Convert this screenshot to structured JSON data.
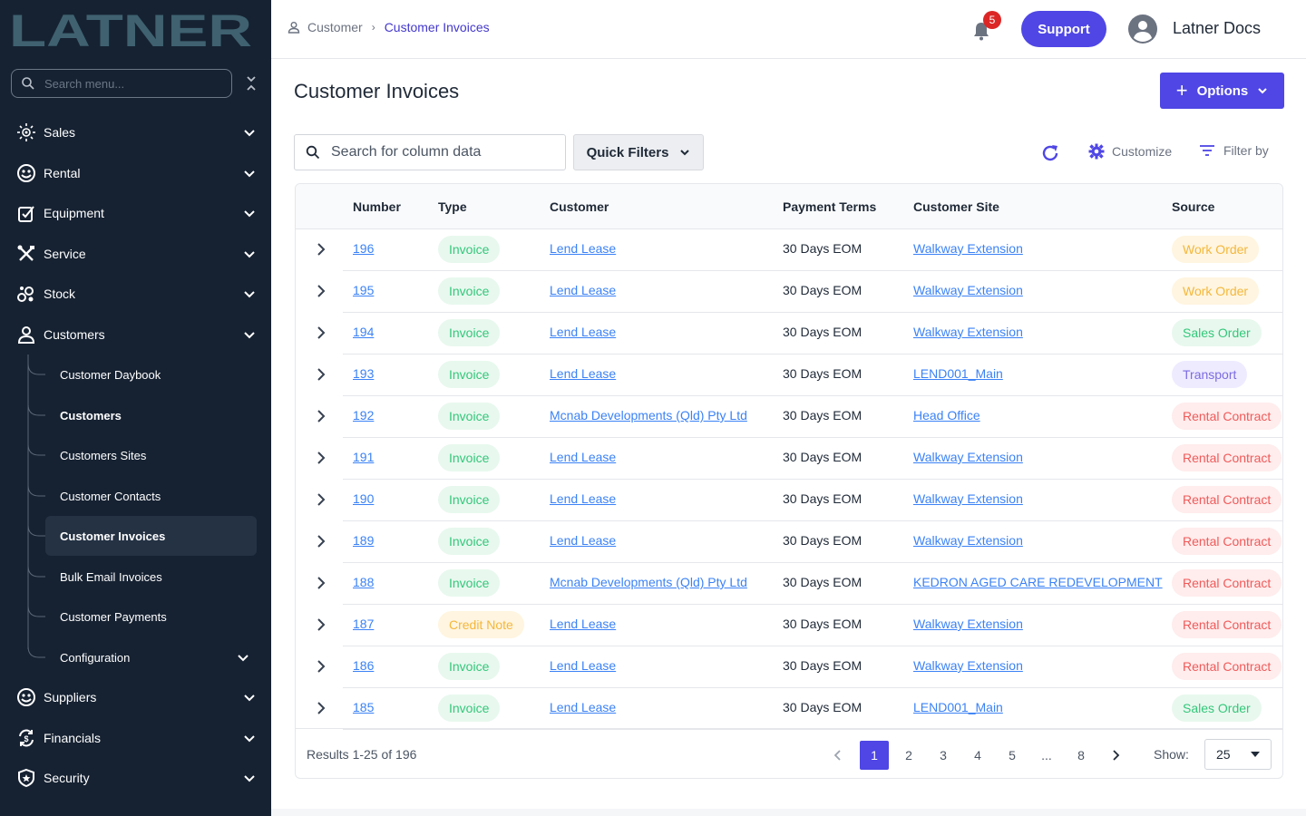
{
  "brand": {
    "logo_text": "LATNER"
  },
  "sidebar": {
    "search_placeholder": "Search menu...",
    "items": [
      {
        "label": "Sales",
        "icon": "sales-icon"
      },
      {
        "label": "Rental",
        "icon": "rental-icon"
      },
      {
        "label": "Equipment",
        "icon": "equipment-icon"
      },
      {
        "label": "Service",
        "icon": "service-icon"
      },
      {
        "label": "Stock",
        "icon": "stock-icon"
      },
      {
        "label": "Customers",
        "icon": "user-icon"
      },
      {
        "label": "Suppliers",
        "icon": "suppliers-icon"
      },
      {
        "label": "Financials",
        "icon": "financials-icon"
      },
      {
        "label": "Security",
        "icon": "shield-icon"
      }
    ],
    "customers_sub": [
      "Customer Daybook",
      "Customers",
      "Customers Sites",
      "Customer Contacts",
      "Customer Invoices",
      "Bulk Email Invoices",
      "Customer Payments",
      "Configuration"
    ]
  },
  "header": {
    "breadcrumb": [
      "Customer",
      "Customer Invoices"
    ],
    "notification_count": "5",
    "support_label": "Support",
    "user_name": "Latner Docs"
  },
  "page": {
    "title": "Customer Invoices",
    "options_label": "Options",
    "search_placeholder": "Search for column data",
    "quick_filters_label": "Quick Filters",
    "customize_label": "Customize",
    "filter_by_label": "Filter by"
  },
  "table": {
    "columns": [
      "Number",
      "Type",
      "Customer",
      "Payment Terms",
      "Customer Site",
      "Source"
    ],
    "rows": [
      {
        "number": "196",
        "type": "Invoice",
        "customer": "Lend Lease",
        "terms": "30 Days EOM",
        "site": "Walkway Extension",
        "source": "Work Order"
      },
      {
        "number": "195",
        "type": "Invoice",
        "customer": "Lend Lease",
        "terms": "30 Days EOM",
        "site": "Walkway Extension",
        "source": "Work Order"
      },
      {
        "number": "194",
        "type": "Invoice",
        "customer": "Lend Lease",
        "terms": "30 Days EOM",
        "site": "Walkway Extension",
        "source": "Sales Order"
      },
      {
        "number": "193",
        "type": "Invoice",
        "customer": "Lend Lease",
        "terms": "30 Days EOM",
        "site": "LEND001_Main",
        "source": "Transport"
      },
      {
        "number": "192",
        "type": "Invoice",
        "customer": "Mcnab Developments (Qld) Pty Ltd",
        "terms": "30 Days EOM",
        "site": "Head Office",
        "source": "Rental Contract"
      },
      {
        "number": "191",
        "type": "Invoice",
        "customer": "Lend Lease",
        "terms": "30 Days EOM",
        "site": "Walkway Extension",
        "source": "Rental Contract"
      },
      {
        "number": "190",
        "type": "Invoice",
        "customer": "Lend Lease",
        "terms": "30 Days EOM",
        "site": "Walkway Extension",
        "source": "Rental Contract"
      },
      {
        "number": "189",
        "type": "Invoice",
        "customer": "Lend Lease",
        "terms": "30 Days EOM",
        "site": "Walkway Extension",
        "source": "Rental Contract"
      },
      {
        "number": "188",
        "type": "Invoice",
        "customer": "Mcnab Developments (Qld) Pty Ltd",
        "terms": "30 Days EOM",
        "site": "KEDRON AGED CARE REDEVELOPMENT",
        "source": "Rental Contract"
      },
      {
        "number": "187",
        "type": "Credit Note",
        "customer": "Lend Lease",
        "terms": "30 Days EOM",
        "site": "Walkway Extension",
        "source": "Rental Contract"
      },
      {
        "number": "186",
        "type": "Invoice",
        "customer": "Lend Lease",
        "terms": "30 Days EOM",
        "site": "Walkway Extension",
        "source": "Rental Contract"
      },
      {
        "number": "185",
        "type": "Invoice",
        "customer": "Lend Lease",
        "terms": "30 Days EOM",
        "site": "LEND001_Main",
        "source": "Sales Order"
      }
    ]
  },
  "pill_colors": {
    "Invoice": {
      "bg": "#e8f8ee",
      "fg": "#34c77b"
    },
    "Credit Note": {
      "bg": "#fff5e0",
      "fg": "#f4b73b"
    },
    "Work Order": {
      "bg": "#fff5e0",
      "fg": "#f4b73b"
    },
    "Sales Order": {
      "bg": "#e8f8ee",
      "fg": "#34c77b"
    },
    "Transport": {
      "bg": "#eeebff",
      "fg": "#7c6ce0"
    },
    "Rental Contract": {
      "bg": "#ffecec",
      "fg": "#f05a5a"
    }
  },
  "pagination": {
    "results_text": "Results 1-25 of 196",
    "pages": [
      "1",
      "2",
      "3",
      "4",
      "5",
      "...",
      "8"
    ],
    "current": "1",
    "show_label": "Show:",
    "show_value": "25"
  }
}
